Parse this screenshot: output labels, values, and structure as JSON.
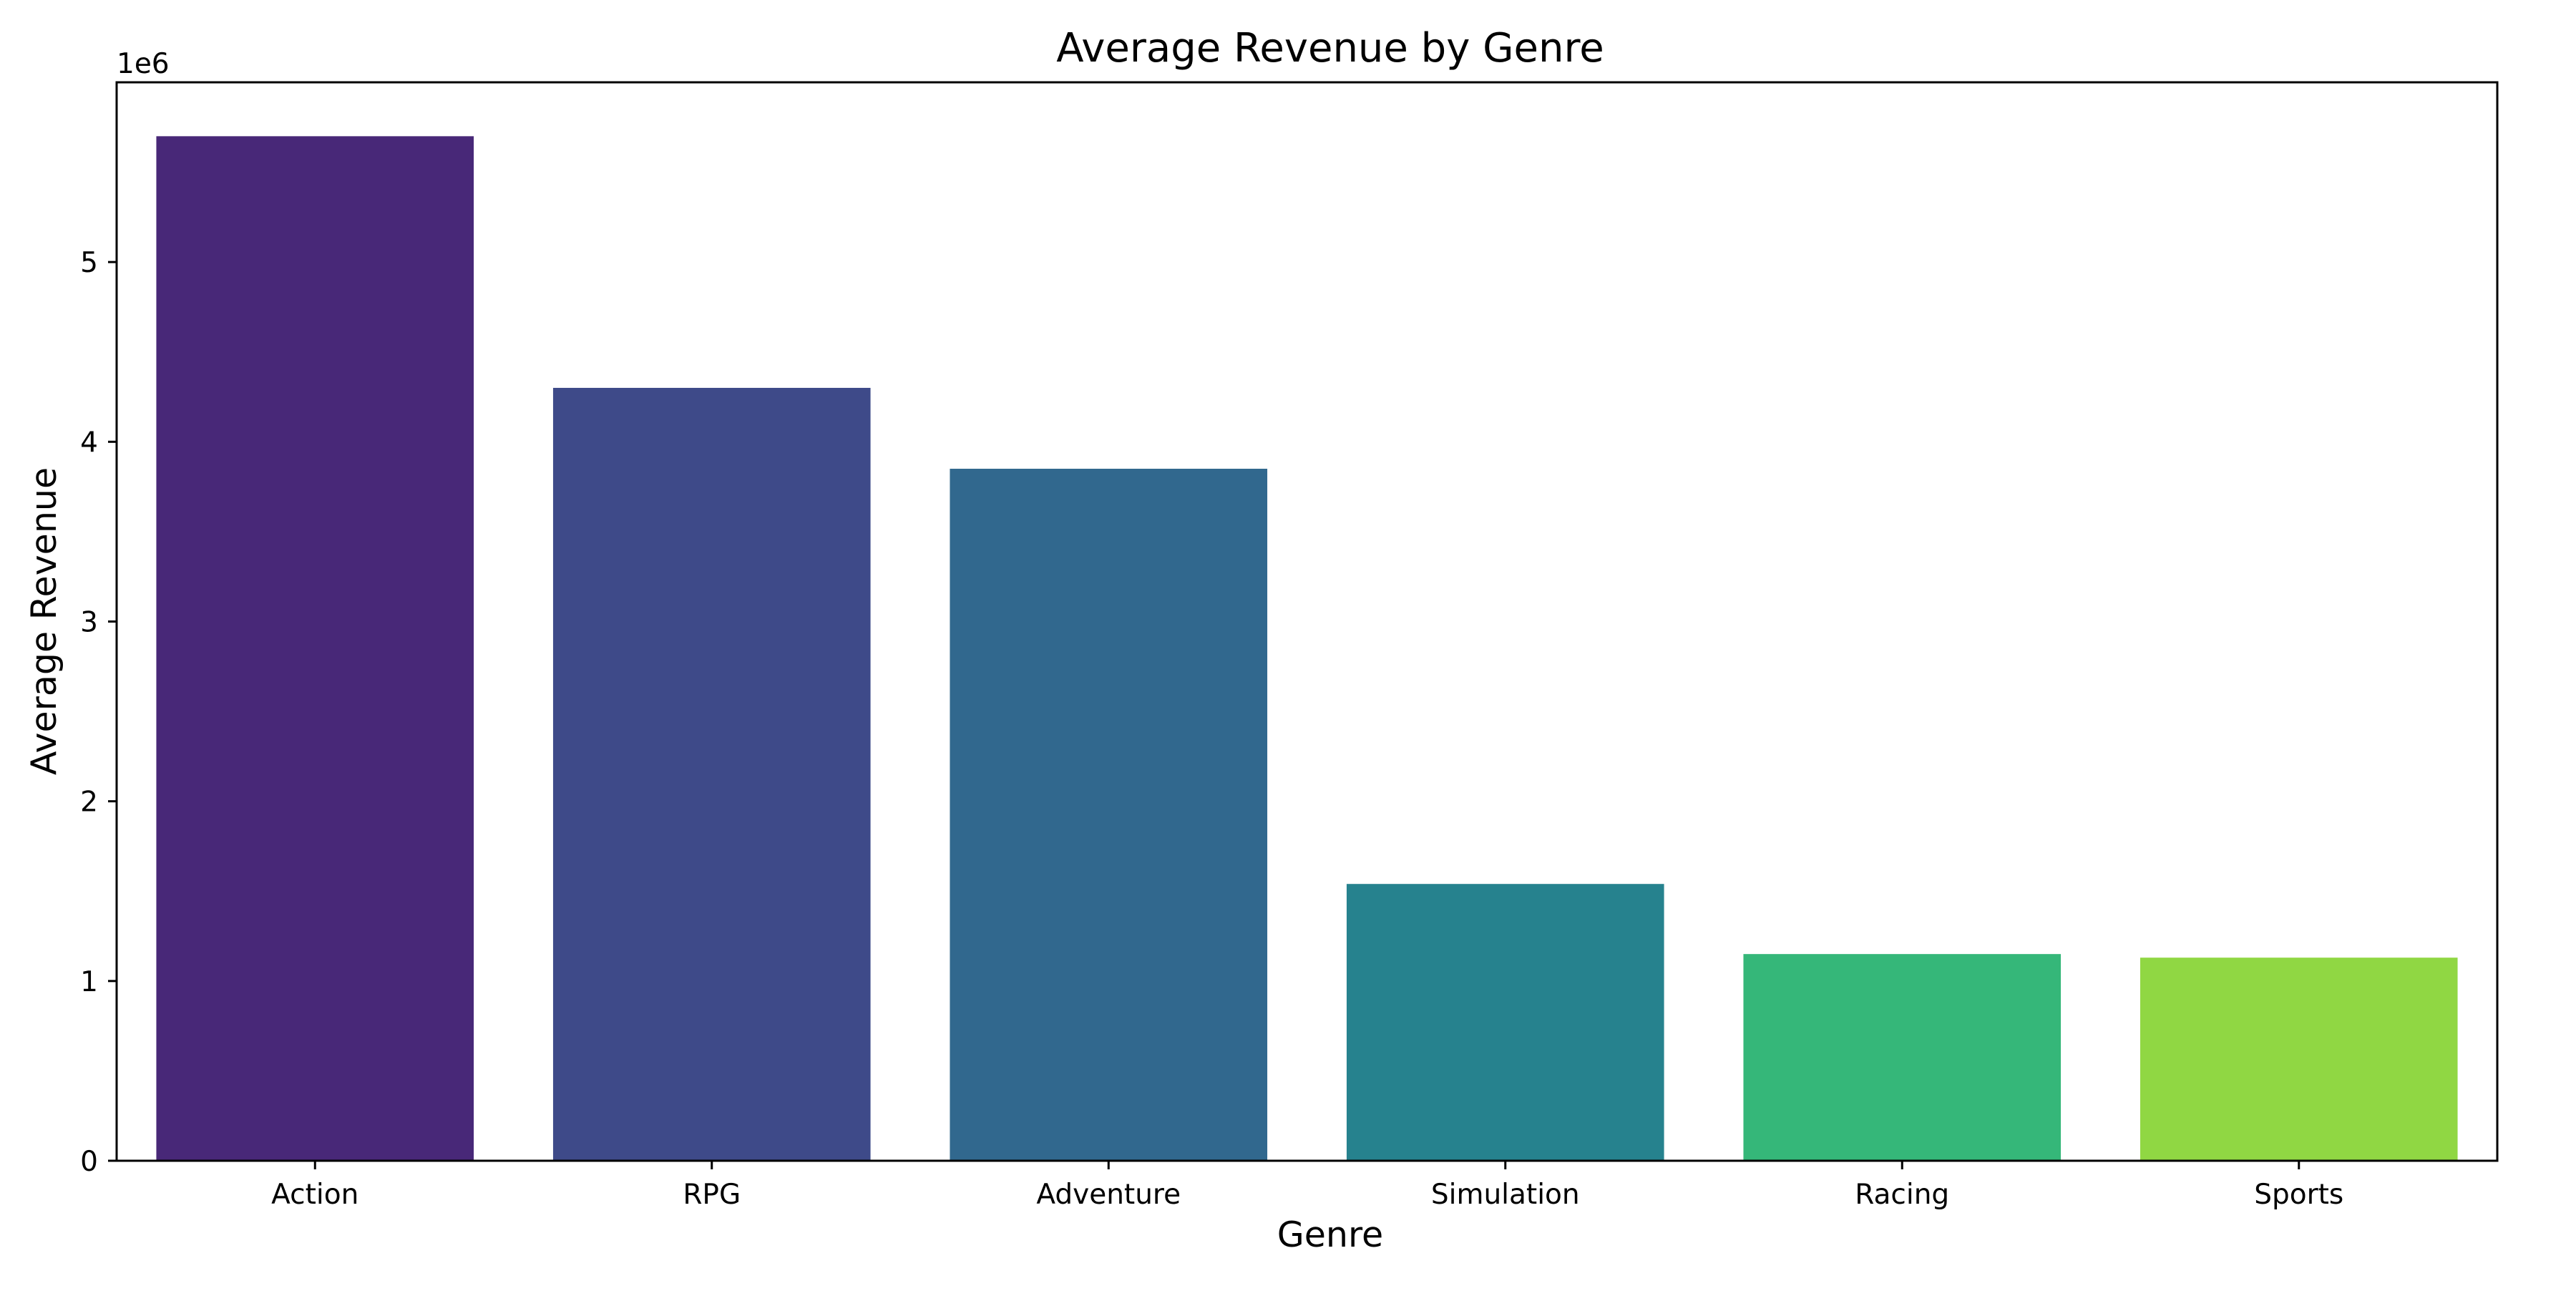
{
  "chart_data": {
    "type": "bar",
    "title": "Average Revenue by Genre",
    "xlabel": "Genre",
    "ylabel": "Average Revenue",
    "y_offset_text": "1e6",
    "categories": [
      "Action",
      "RPG",
      "Adventure",
      "Simulation",
      "Racing",
      "Sports"
    ],
    "values": [
      5700000,
      4300000,
      3850000,
      1540000,
      1150000,
      1130000
    ],
    "colors": [
      "#482878",
      "#3e4a89",
      "#31688e",
      "#26828e",
      "#35b779",
      "#90d743"
    ],
    "ylim": [
      0,
      6000000
    ],
    "y_ticks": [
      0,
      1,
      2,
      3,
      4,
      5
    ],
    "y_tick_scale": 1000000,
    "grid": false,
    "legend": "none"
  }
}
